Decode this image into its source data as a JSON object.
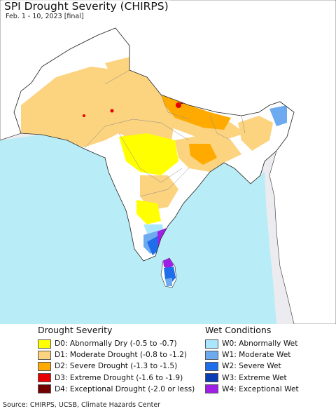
{
  "title": "SPI Drought Severity (CHIRPS)",
  "subtitle": "Feb. 1 - 10, 2023 [final]",
  "map": {
    "land_color": "#ffffff",
    "water_color": "#b8ecf6",
    "outside_region_color": "#ececf0",
    "border_color": "#333333"
  },
  "legend": {
    "drought": {
      "title": "Drought Severity",
      "items": [
        {
          "code": "D0",
          "label": "D0: Abnormally Dry (-0.5 to -0.7)",
          "color": "#ffff00"
        },
        {
          "code": "D1",
          "label": "D1: Moderate Drought (-0.8 to -1.2)",
          "color": "#fcd37f"
        },
        {
          "code": "D2",
          "label": "D2: Severe Drought (-1.3 to -1.5)",
          "color": "#ffaa00"
        },
        {
          "code": "D3",
          "label": "D3: Extreme Drought (-1.6 to -1.9)",
          "color": "#e60000"
        },
        {
          "code": "D4",
          "label": "D4: Exceptional Drought (-2.0 or less)",
          "color": "#730000"
        }
      ]
    },
    "wet": {
      "title": "Wet Conditions",
      "items": [
        {
          "code": "W0",
          "label": "W0: Abnormally Wet",
          "color": "#aae6ff"
        },
        {
          "code": "W1",
          "label": "W1: Moderate Wet",
          "color": "#6eaaf0"
        },
        {
          "code": "W2",
          "label": "W2: Severe Wet",
          "color": "#1e6eeb"
        },
        {
          "code": "W3",
          "label": "W3: Extreme Wet",
          "color": "#0a3cb4"
        },
        {
          "code": "W4",
          "label": "W4: Exceptional Wet",
          "color": "#a01ee6"
        }
      ]
    }
  },
  "source": "Source: CHIRPS, UCSB, Climate Hazards Center"
}
